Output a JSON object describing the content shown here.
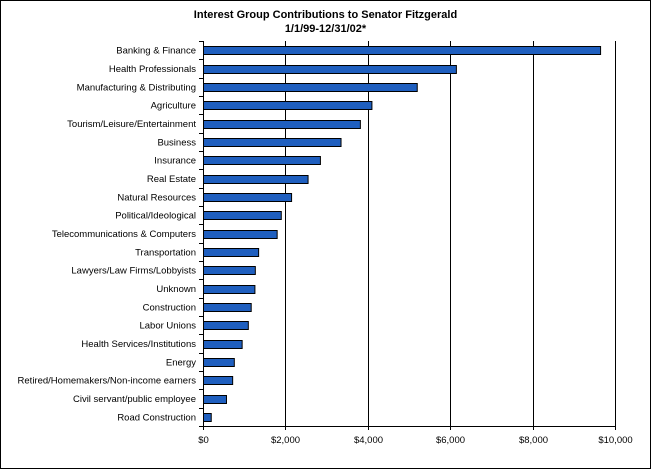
{
  "chart_data": {
    "type": "bar",
    "orientation": "horizontal",
    "title": "Interest Group Contributions to Senator Fitzgerald",
    "subtitle": "1/1/99-12/31/02*",
    "categories": [
      "Banking & Finance",
      "Health Professionals",
      "Manufacturing & Distributing",
      "Agriculture",
      "Tourism/Leisure/Entertainment",
      "Business",
      "Insurance",
      "Real Estate",
      "Natural Resources",
      "Political/Ideological",
      "Telecommunications & Computers",
      "Transportation",
      "Lawyers/Law Firms/Lobbyists",
      "Unknown",
      "Construction",
      "Labor Unions",
      "Health Services/Institutions",
      "Energy",
      "Retired/Homemakers/Non-income earners",
      "Civil servant/public employee",
      "Road Construction"
    ],
    "values": [
      9650,
      6150,
      5200,
      4100,
      3820,
      3350,
      2850,
      2550,
      2150,
      1900,
      1800,
      1350,
      1270,
      1260,
      1170,
      1100,
      950,
      760,
      720,
      570,
      200
    ],
    "xlim": [
      0,
      10000
    ],
    "xticks": [
      0,
      2000,
      4000,
      6000,
      8000,
      10000
    ],
    "xtick_labels": [
      "$0",
      "$2,000",
      "$4,000",
      "$6,000",
      "$8,000",
      "$10,000"
    ],
    "xlabel": "",
    "ylabel": "",
    "grid": "vertical",
    "legend": "none",
    "bar_color": "#1f5fbf",
    "bar_edge_color": "#000000",
    "grid_color": "#000000"
  }
}
